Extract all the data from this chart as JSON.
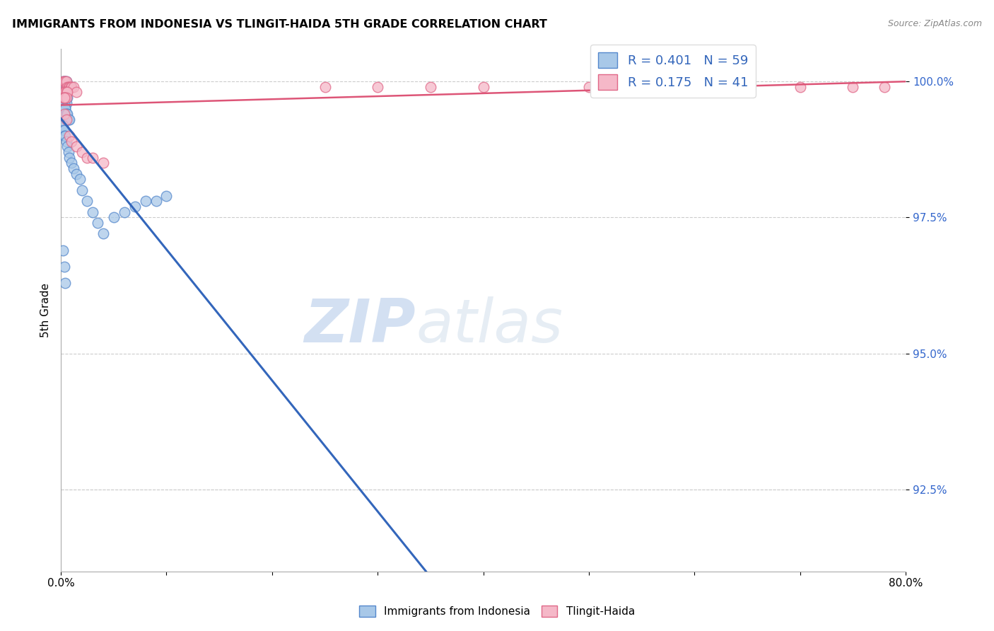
{
  "title": "IMMIGRANTS FROM INDONESIA VS TLINGIT-HAIDA 5TH GRADE CORRELATION CHART",
  "source": "Source: ZipAtlas.com",
  "ylabel": "5th Grade",
  "xlim": [
    0.0,
    0.8
  ],
  "ylim": [
    0.91,
    1.006
  ],
  "ytick_values": [
    0.925,
    0.95,
    0.975,
    1.0
  ],
  "ytick_labels": [
    "92.5%",
    "95.0%",
    "97.5%",
    "100.0%"
  ],
  "xtick_values": [
    0.0,
    0.1,
    0.2,
    0.3,
    0.4,
    0.5,
    0.6,
    0.7,
    0.8
  ],
  "blue_R": 0.401,
  "blue_N": 59,
  "pink_R": 0.175,
  "pink_N": 41,
  "blue_color": "#a8c8e8",
  "pink_color": "#f5b8c8",
  "blue_edge_color": "#5588cc",
  "pink_edge_color": "#e06888",
  "blue_line_color": "#3366bb",
  "pink_line_color": "#dd5577",
  "blue_x": [
    0.002,
    0.003,
    0.003,
    0.004,
    0.004,
    0.005,
    0.005,
    0.006,
    0.007,
    0.008,
    0.009,
    0.01,
    0.002,
    0.003,
    0.004,
    0.005,
    0.006,
    0.003,
    0.004,
    0.002,
    0.003,
    0.004,
    0.005,
    0.002,
    0.003,
    0.003,
    0.004,
    0.004,
    0.005,
    0.006,
    0.007,
    0.008,
    0.002,
    0.002,
    0.003,
    0.003,
    0.004,
    0.005,
    0.006,
    0.007,
    0.008,
    0.01,
    0.012,
    0.015,
    0.018,
    0.02,
    0.025,
    0.03,
    0.035,
    0.04,
    0.002,
    0.003,
    0.004,
    0.05,
    0.06,
    0.07,
    0.08,
    0.09,
    0.1
  ],
  "blue_y": [
    1.0,
    1.0,
    1.0,
    1.0,
    0.999,
    1.0,
    0.999,
    0.999,
    0.999,
    0.999,
    0.999,
    0.999,
    0.998,
    0.998,
    0.998,
    0.998,
    0.997,
    0.997,
    0.997,
    0.997,
    0.997,
    0.997,
    0.996,
    0.996,
    0.996,
    0.995,
    0.995,
    0.995,
    0.994,
    0.994,
    0.993,
    0.993,
    0.992,
    0.991,
    0.991,
    0.99,
    0.99,
    0.989,
    0.988,
    0.987,
    0.986,
    0.985,
    0.984,
    0.983,
    0.982,
    0.98,
    0.978,
    0.976,
    0.974,
    0.972,
    0.969,
    0.966,
    0.963,
    0.975,
    0.976,
    0.977,
    0.978,
    0.978,
    0.979
  ],
  "pink_x": [
    0.002,
    0.003,
    0.004,
    0.005,
    0.006,
    0.007,
    0.008,
    0.009,
    0.01,
    0.012,
    0.015,
    0.002,
    0.003,
    0.004,
    0.005,
    0.006,
    0.002,
    0.003,
    0.004,
    0.005,
    0.003,
    0.25,
    0.3,
    0.35,
    0.4,
    0.5,
    0.55,
    0.6,
    0.65,
    0.7,
    0.75,
    0.78,
    0.003,
    0.005,
    0.008,
    0.01,
    0.015,
    0.02,
    0.025,
    0.03,
    0.04
  ],
  "pink_y": [
    1.0,
    1.0,
    1.0,
    1.0,
    0.999,
    0.999,
    0.999,
    0.999,
    0.999,
    0.999,
    0.998,
    0.998,
    0.998,
    0.998,
    0.998,
    0.998,
    0.997,
    0.997,
    0.997,
    0.997,
    0.997,
    0.999,
    0.999,
    0.999,
    0.999,
    0.999,
    0.999,
    0.999,
    0.999,
    0.999,
    0.999,
    0.999,
    0.994,
    0.993,
    0.99,
    0.989,
    0.988,
    0.987,
    0.986,
    0.986,
    0.985
  ],
  "watermark_zip": "ZIP",
  "watermark_atlas": "atlas",
  "legend_fontsize": 13,
  "title_fontsize": 11.5
}
